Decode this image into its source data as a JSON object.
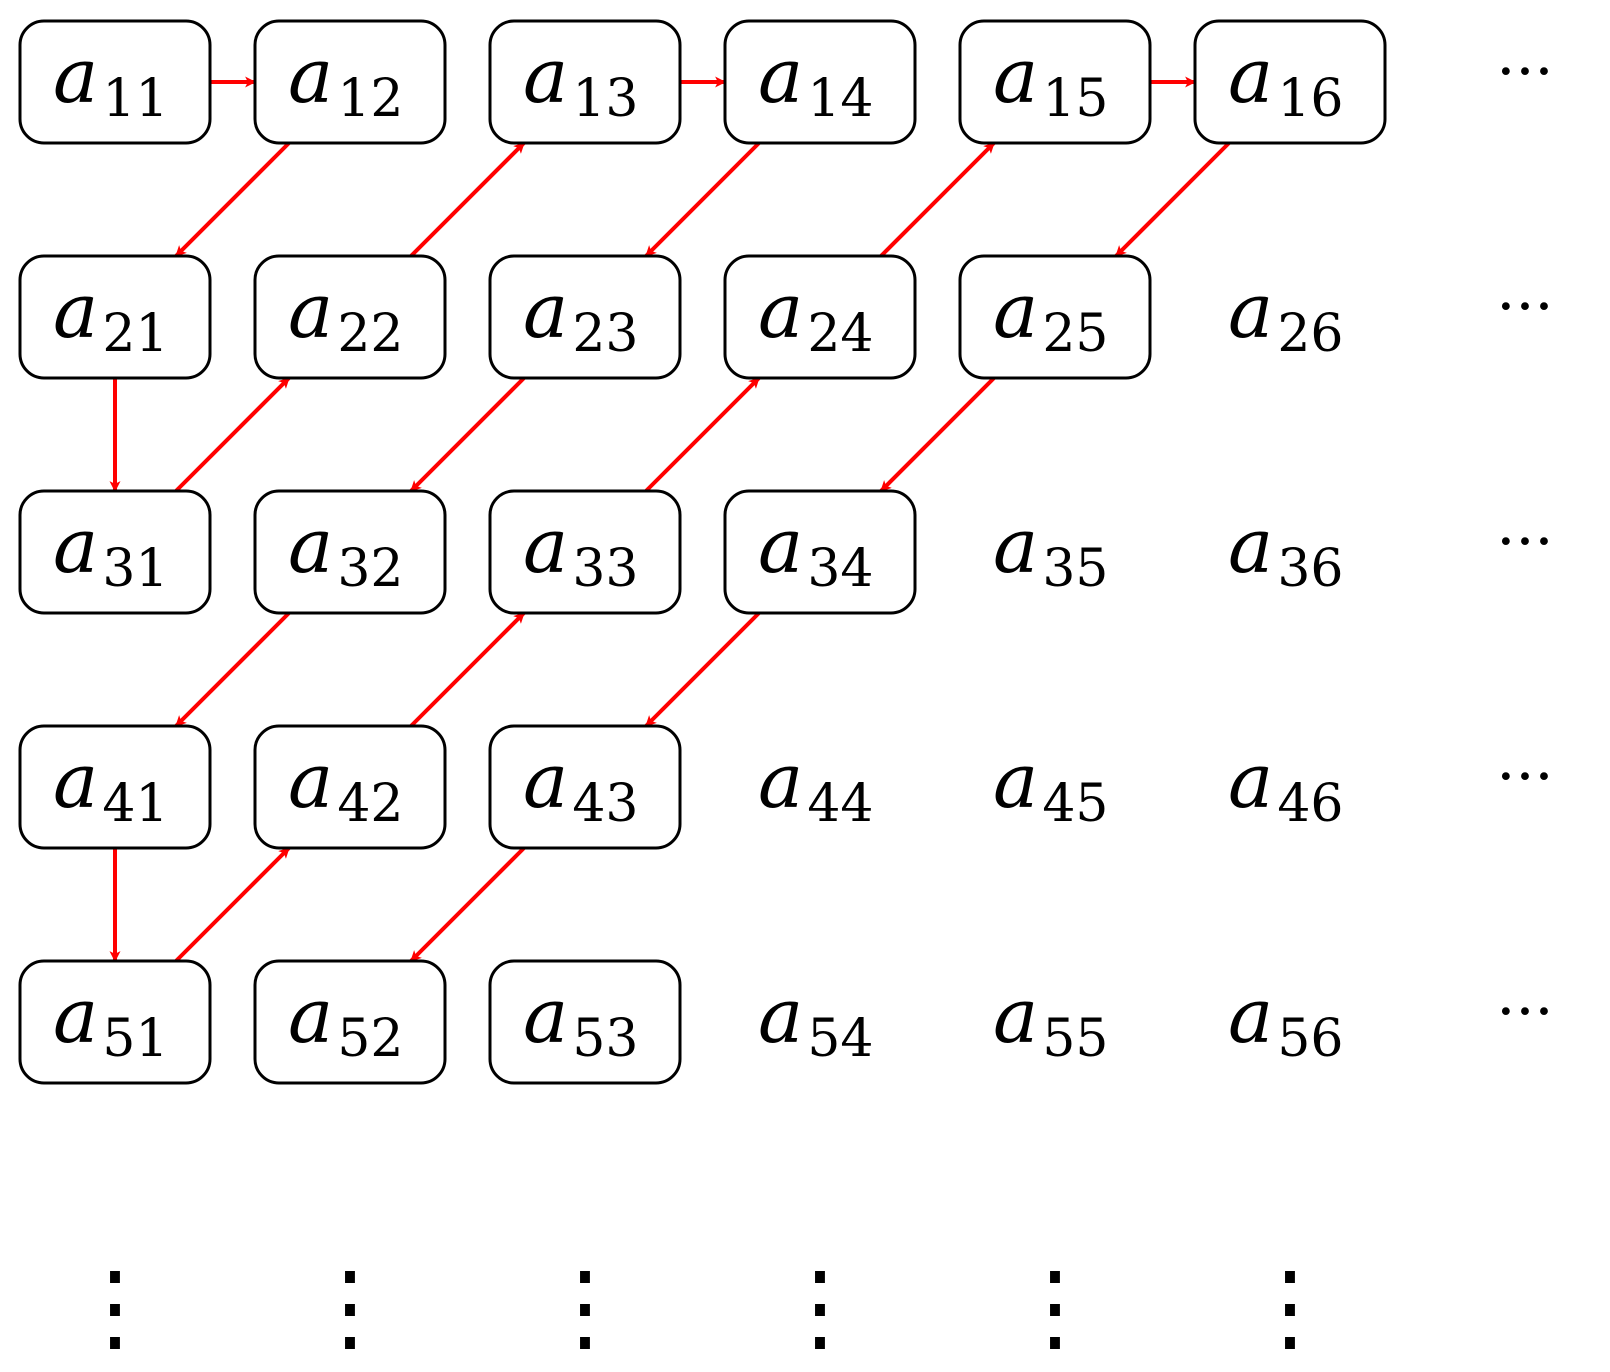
{
  "grid": {
    "variable": "a",
    "rows": 5,
    "cols": 6,
    "cells": [
      {
        "r": 1,
        "c": 1,
        "sub": "11",
        "boxed": true
      },
      {
        "r": 1,
        "c": 2,
        "sub": "12",
        "boxed": true
      },
      {
        "r": 1,
        "c": 3,
        "sub": "13",
        "boxed": true
      },
      {
        "r": 1,
        "c": 4,
        "sub": "14",
        "boxed": true
      },
      {
        "r": 1,
        "c": 5,
        "sub": "15",
        "boxed": true
      },
      {
        "r": 1,
        "c": 6,
        "sub": "16",
        "boxed": true
      },
      {
        "r": 2,
        "c": 1,
        "sub": "21",
        "boxed": true
      },
      {
        "r": 2,
        "c": 2,
        "sub": "22",
        "boxed": true
      },
      {
        "r": 2,
        "c": 3,
        "sub": "23",
        "boxed": true
      },
      {
        "r": 2,
        "c": 4,
        "sub": "24",
        "boxed": true
      },
      {
        "r": 2,
        "c": 5,
        "sub": "25",
        "boxed": true
      },
      {
        "r": 2,
        "c": 6,
        "sub": "26",
        "boxed": false
      },
      {
        "r": 3,
        "c": 1,
        "sub": "31",
        "boxed": true
      },
      {
        "r": 3,
        "c": 2,
        "sub": "32",
        "boxed": true
      },
      {
        "r": 3,
        "c": 3,
        "sub": "33",
        "boxed": true
      },
      {
        "r": 3,
        "c": 4,
        "sub": "34",
        "boxed": true
      },
      {
        "r": 3,
        "c": 5,
        "sub": "35",
        "boxed": false
      },
      {
        "r": 3,
        "c": 6,
        "sub": "36",
        "boxed": false
      },
      {
        "r": 4,
        "c": 1,
        "sub": "41",
        "boxed": true
      },
      {
        "r": 4,
        "c": 2,
        "sub": "42",
        "boxed": true
      },
      {
        "r": 4,
        "c": 3,
        "sub": "43",
        "boxed": true
      },
      {
        "r": 4,
        "c": 4,
        "sub": "44",
        "boxed": false
      },
      {
        "r": 4,
        "c": 5,
        "sub": "45",
        "boxed": false
      },
      {
        "r": 4,
        "c": 6,
        "sub": "46",
        "boxed": false
      },
      {
        "r": 5,
        "c": 1,
        "sub": "51",
        "boxed": true
      },
      {
        "r": 5,
        "c": 2,
        "sub": "52",
        "boxed": true
      },
      {
        "r": 5,
        "c": 3,
        "sub": "53",
        "boxed": true
      },
      {
        "r": 5,
        "c": 4,
        "sub": "54",
        "boxed": false
      },
      {
        "r": 5,
        "c": 5,
        "sub": "55",
        "boxed": false
      },
      {
        "r": 5,
        "c": 6,
        "sub": "56",
        "boxed": false
      }
    ],
    "row_continuation": "···",
    "column_continuation": "⋮"
  },
  "path": {
    "color": "#ff0000",
    "edges": [
      [
        "11",
        "12"
      ],
      [
        "12",
        "21"
      ],
      [
        "21",
        "31"
      ],
      [
        "31",
        "22"
      ],
      [
        "22",
        "13"
      ],
      [
        "13",
        "14"
      ],
      [
        "14",
        "23"
      ],
      [
        "23",
        "32"
      ],
      [
        "32",
        "41"
      ],
      [
        "41",
        "51"
      ],
      [
        "51",
        "42"
      ],
      [
        "42",
        "33"
      ],
      [
        "33",
        "24"
      ],
      [
        "24",
        "15"
      ],
      [
        "15",
        "16"
      ],
      [
        "16",
        "25"
      ],
      [
        "25",
        "34"
      ],
      [
        "34",
        "43"
      ],
      [
        "43",
        "52"
      ]
    ]
  }
}
